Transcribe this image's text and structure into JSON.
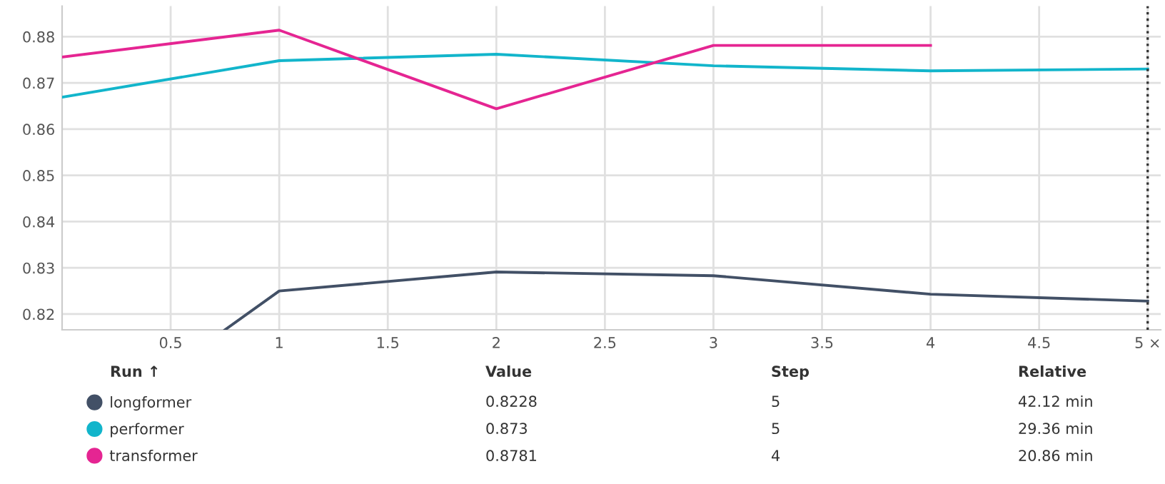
{
  "chart_data": {
    "type": "line",
    "x": [
      0,
      1,
      2,
      3,
      4,
      5
    ],
    "series": [
      {
        "name": "longformer",
        "color": "#425066",
        "x": [
          0.75,
          1,
          2,
          3,
          4,
          5
        ],
        "values": [
          0.8166,
          0.825,
          0.8291,
          0.8283,
          0.8243,
          0.8228
        ]
      },
      {
        "name": "performer",
        "color": "#12b5cb",
        "values": [
          0.8669,
          0.8748,
          0.8762,
          0.8737,
          0.8726,
          0.873
        ]
      },
      {
        "name": "transformer",
        "color": "#e52592",
        "values": [
          0.8756,
          0.8814,
          0.8644,
          0.8781,
          0.8781,
          null
        ]
      }
    ],
    "xlim": [
      0,
      5.06
    ],
    "ylim": [
      0.8166,
      0.8866
    ],
    "xticks": [
      0.5,
      1,
      1.5,
      2,
      2.5,
      3,
      3.5,
      4,
      4.5,
      {
        "value": 5,
        "label": "5 ×"
      }
    ],
    "yticks": [
      0.82,
      0.83,
      0.84,
      0.85,
      0.86,
      0.87,
      0.88
    ],
    "ref_lines": [
      {
        "axis": "x",
        "value": 5,
        "label": null,
        "color": "#333333",
        "line_style": "dotted"
      }
    ],
    "grid": true,
    "legend": "bottom",
    "marker": "none",
    "line_style": "solid",
    "annotations": [
      "Run ↑",
      "Value",
      "Step",
      "Relative",
      "0.8228",
      "5",
      "42.12 min",
      "0.873",
      "5",
      "29.36 min",
      "0.8781",
      "4",
      "20.86 min"
    ]
  }
}
